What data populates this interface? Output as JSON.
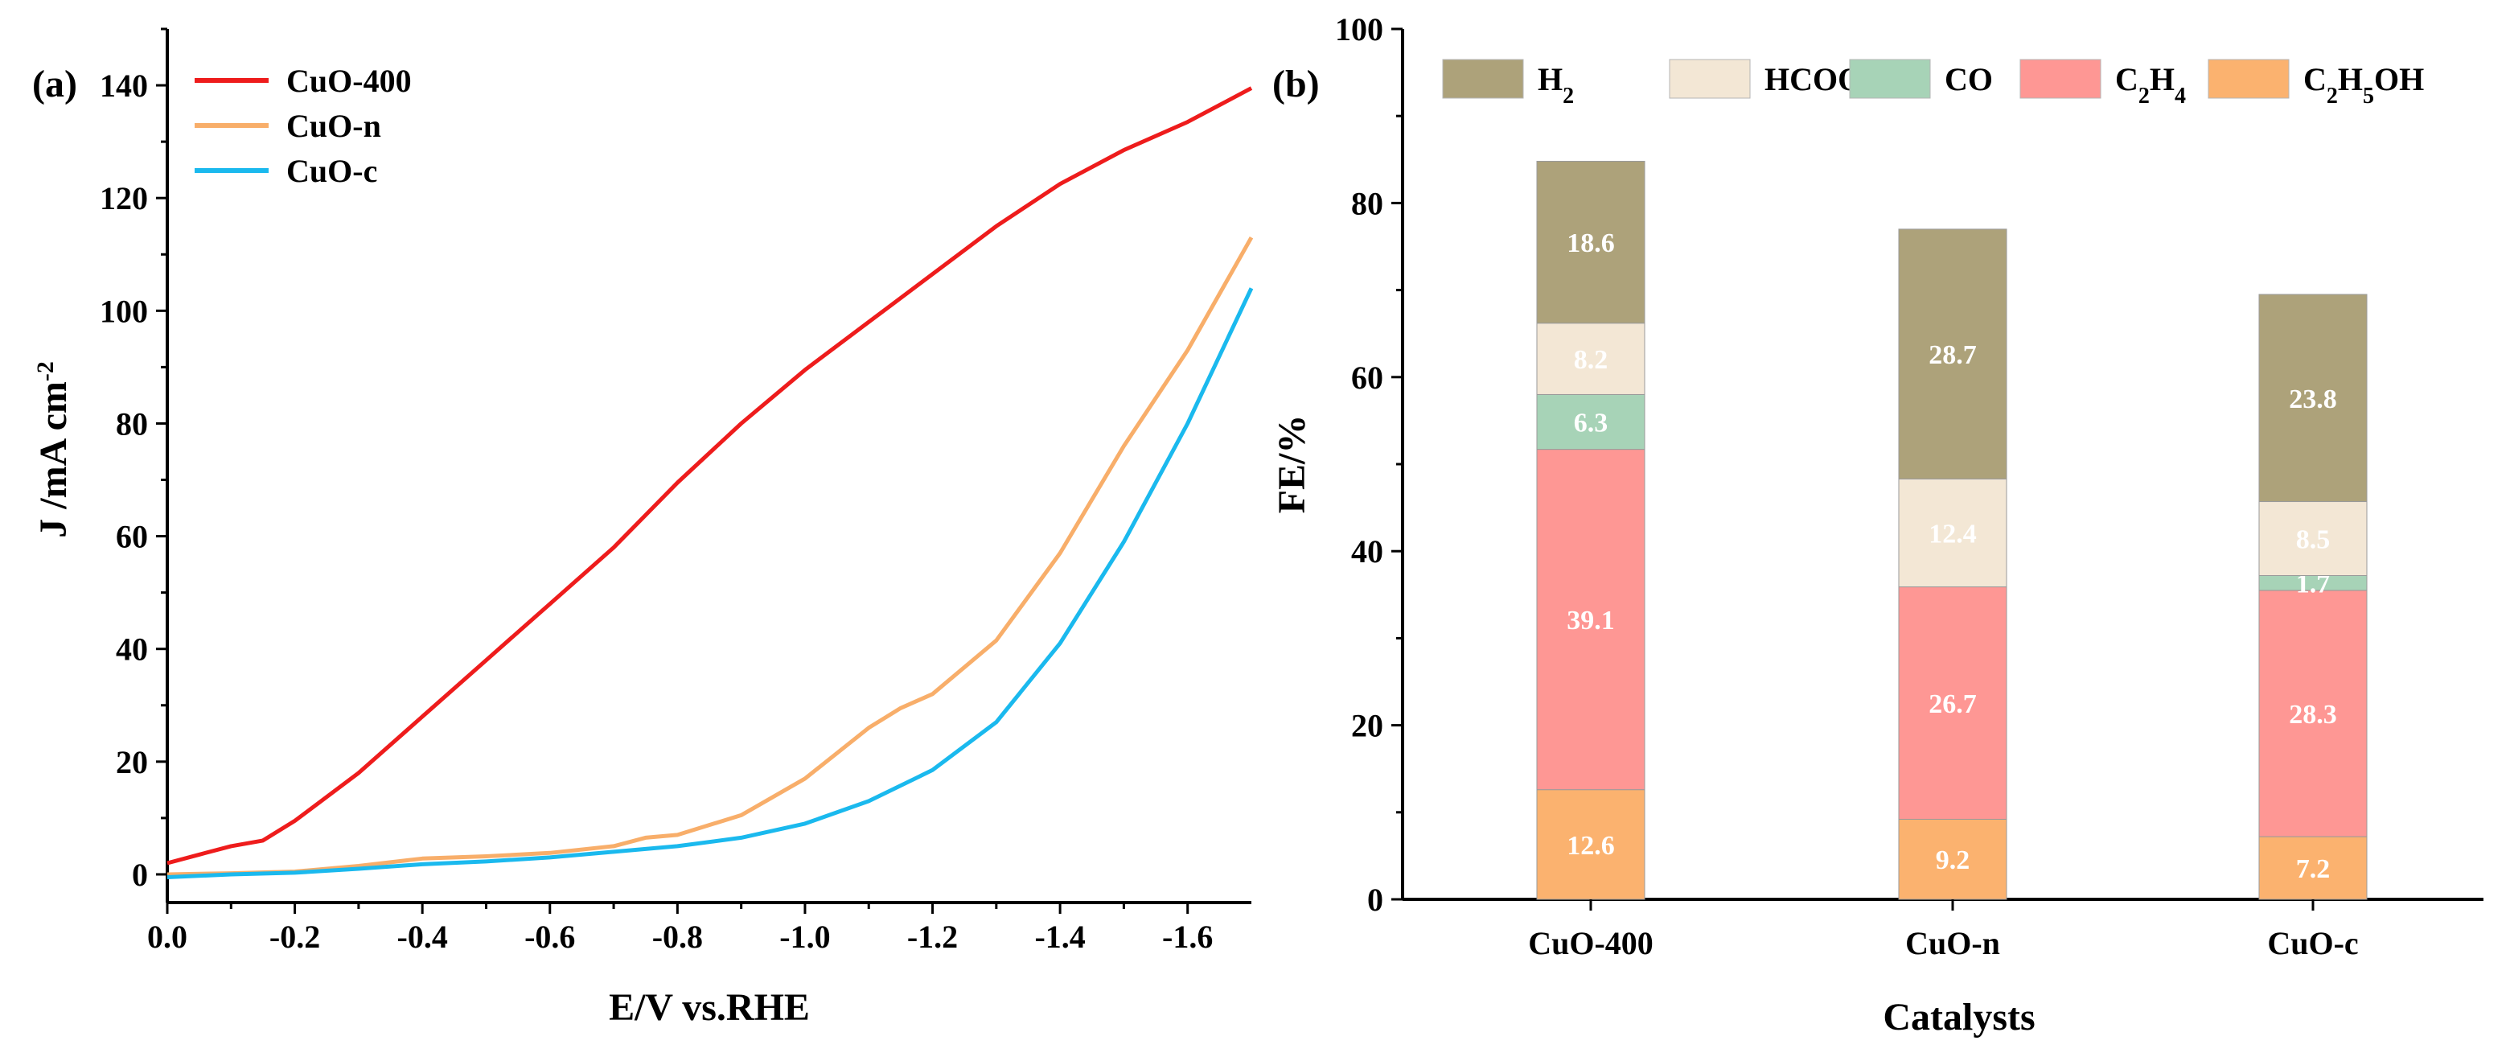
{
  "panel_labels": {
    "a": "(a)",
    "b": "(b)"
  },
  "colors": {
    "CuO-400": "#ee1c1c",
    "CuO-n": "#f8ae6a",
    "CuO-c": "#1ab9ee",
    "H2": "#ada27a",
    "HCOOH": "#f3e7d5",
    "CO": "#a7d3b7",
    "C2H4": "#fe9794",
    "C2H5OH": "#fbb26f"
  },
  "chart_data": [
    {
      "type": "line",
      "panel": "a",
      "title": "",
      "xlabel": "E/V vs.RHE",
      "ylabel": "J /mA cm",
      "ylabel_sup": "-2",
      "xlim": [
        0.0,
        -1.7
      ],
      "ylim": [
        -5,
        150
      ],
      "xticks": [
        0.0,
        -0.2,
        -0.4,
        -0.6,
        -0.8,
        -1.0,
        -1.2,
        -1.4,
        -1.6
      ],
      "xtick_labels": [
        "0.0",
        "-0.2",
        "-0.4",
        "-0.6",
        "-0.8",
        "-1.0",
        "-1.2",
        "-1.4",
        "-1.6"
      ],
      "yticks": [
        0,
        20,
        40,
        60,
        80,
        100,
        120,
        140
      ],
      "ytick_labels": [
        "0",
        "20",
        "40",
        "60",
        "80",
        "100",
        "120",
        "140"
      ],
      "legend_position": "top-left",
      "series": [
        {
          "name": "CuO-400",
          "x": [
            0.0,
            -0.05,
            -0.1,
            -0.15,
            -0.2,
            -0.3,
            -0.4,
            -0.5,
            -0.6,
            -0.7,
            -0.8,
            -0.9,
            -1.0,
            -1.1,
            -1.2,
            -1.3,
            -1.4,
            -1.5,
            -1.6,
            -1.7
          ],
          "y": [
            2,
            3.5,
            5,
            6,
            9.5,
            18,
            28,
            38,
            48,
            58,
            69.5,
            80,
            89.5,
            98,
            106.5,
            115,
            122.5,
            128.5,
            133.5,
            139.5
          ]
        },
        {
          "name": "CuO-n",
          "x": [
            0.0,
            -0.1,
            -0.2,
            -0.3,
            -0.4,
            -0.5,
            -0.6,
            -0.7,
            -0.75,
            -0.8,
            -0.9,
            -1.0,
            -1.1,
            -1.15,
            -1.2,
            -1.3,
            -1.4,
            -1.5,
            -1.6,
            -1.7
          ],
          "y": [
            0,
            0.2,
            0.5,
            1.5,
            2.8,
            3.2,
            3.8,
            5,
            6.5,
            7,
            10.5,
            17,
            26,
            29.5,
            32,
            41.5,
            57,
            76,
            93,
            113
          ]
        },
        {
          "name": "CuO-c",
          "x": [
            0.0,
            -0.1,
            -0.2,
            -0.3,
            -0.4,
            -0.5,
            -0.6,
            -0.7,
            -0.8,
            -0.9,
            -1.0,
            -1.1,
            -1.2,
            -1.3,
            -1.4,
            -1.5,
            -1.6,
            -1.7
          ],
          "y": [
            -0.5,
            0,
            0.3,
            1,
            1.8,
            2.3,
            3,
            4,
            5,
            6.5,
            9,
            13,
            18.5,
            27,
            41,
            59,
            80,
            104
          ]
        }
      ]
    },
    {
      "type": "bar",
      "panel": "b",
      "stacked": true,
      "title": "",
      "xlabel": "Catalysts",
      "ylabel": "FE/%",
      "ylim": [
        0,
        100
      ],
      "yticks": [
        0,
        20,
        40,
        60,
        80,
        100
      ],
      "ytick_labels": [
        "0",
        "20",
        "40",
        "60",
        "80",
        "100"
      ],
      "categories": [
        "CuO-400",
        "CuO-n",
        "CuO-c"
      ],
      "legend_position": "top",
      "series": [
        {
          "name": "C2H5OH",
          "label_main": "C",
          "label_sub1": "2",
          "label_mid": "H",
          "label_sub2": "5",
          "label_end": "OH",
          "values": [
            12.6,
            9.2,
            7.2
          ],
          "value_labels": [
            "12.6",
            "9.2",
            "7.2"
          ]
        },
        {
          "name": "C2H4",
          "label_main": "C",
          "label_sub1": "2",
          "label_mid": "H",
          "label_sub2": "4",
          "label_end": "",
          "values": [
            39.1,
            26.7,
            28.3
          ],
          "value_labels": [
            "39.1",
            "26.7",
            "28.3"
          ]
        },
        {
          "name": "CO",
          "label_main": "CO",
          "label_sub1": "",
          "label_mid": "",
          "label_sub2": "",
          "label_end": "",
          "values": [
            6.3,
            0,
            1.7
          ],
          "value_labels": [
            "6.3",
            "",
            "1.7"
          ]
        },
        {
          "name": "HCOOH",
          "label_main": "HCOOH",
          "label_sub1": "",
          "label_mid": "",
          "label_sub2": "",
          "label_end": "",
          "values": [
            8.2,
            12.4,
            8.5
          ],
          "value_labels": [
            "8.2",
            "12.4",
            "8.5"
          ]
        },
        {
          "name": "H2",
          "label_main": "H",
          "label_sub1": "2",
          "label_mid": "",
          "label_sub2": "",
          "label_end": "",
          "values": [
            18.6,
            28.7,
            23.8
          ],
          "value_labels": [
            "18.6",
            "28.7",
            "23.8"
          ]
        }
      ],
      "legend_order": [
        "H2",
        "HCOOH",
        "CO",
        "C2H4",
        "C2H5OH"
      ]
    }
  ]
}
